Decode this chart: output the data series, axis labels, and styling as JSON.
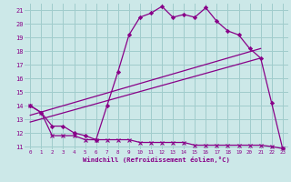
{
  "xlabel": "Windchill (Refroidissement éolien,°C)",
  "background_color": "#cce8e8",
  "grid_color": "#a0cccc",
  "line_color": "#880088",
  "xlim": [
    -0.5,
    23.5
  ],
  "ylim": [
    10.8,
    21.5
  ],
  "xticks": [
    0,
    1,
    2,
    3,
    4,
    5,
    6,
    7,
    8,
    9,
    10,
    11,
    12,
    13,
    14,
    15,
    16,
    17,
    18,
    19,
    20,
    21,
    22,
    23
  ],
  "yticks": [
    11,
    12,
    13,
    14,
    15,
    16,
    17,
    18,
    19,
    20,
    21
  ],
  "line1_x": [
    0,
    1,
    2,
    3,
    4,
    5,
    6,
    7,
    8,
    9,
    10,
    11,
    12,
    13,
    14,
    15,
    16,
    17,
    18,
    19,
    20,
    21,
    22,
    23
  ],
  "line1_y": [
    14.0,
    13.5,
    11.8,
    11.8,
    11.8,
    11.5,
    11.5,
    11.5,
    11.5,
    11.5,
    11.3,
    11.3,
    11.3,
    11.3,
    11.3,
    11.1,
    11.1,
    11.1,
    11.1,
    11.1,
    11.1,
    11.1,
    11.0,
    10.85
  ],
  "line2_x": [
    0,
    1,
    2,
    3,
    4,
    5,
    6,
    7,
    8,
    9,
    10,
    11,
    12,
    13,
    14,
    15,
    16,
    17,
    18,
    19,
    20,
    21,
    22,
    23
  ],
  "line2_y": [
    14.0,
    13.5,
    12.5,
    12.5,
    12.0,
    11.8,
    11.5,
    14.0,
    16.5,
    19.2,
    20.5,
    20.8,
    21.3,
    20.5,
    20.7,
    20.5,
    21.2,
    20.2,
    19.5,
    19.2,
    18.2,
    17.5,
    14.2,
    10.85
  ],
  "line3_x": [
    0,
    21
  ],
  "line3_y": [
    12.8,
    17.5
  ],
  "line4_x": [
    0,
    21
  ],
  "line4_y": [
    13.3,
    18.2
  ]
}
